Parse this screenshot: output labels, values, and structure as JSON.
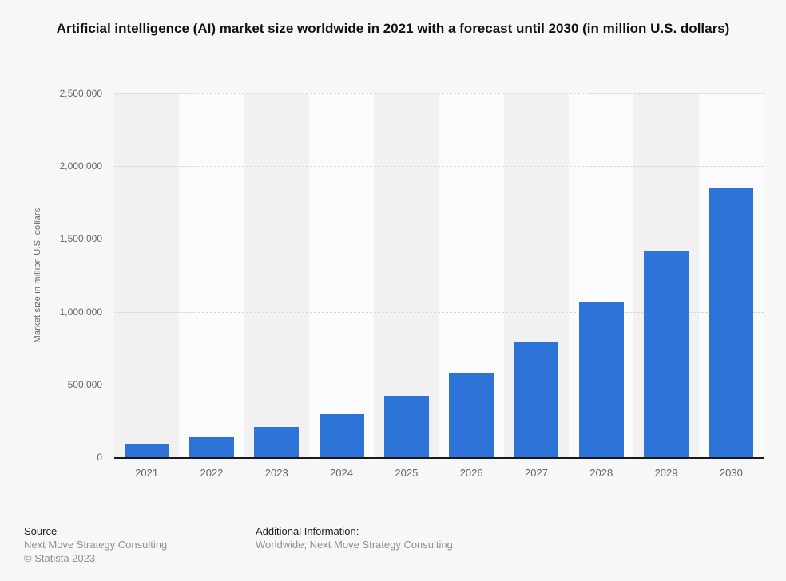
{
  "chart_data": {
    "type": "bar",
    "title": "Artificial intelligence (AI) market size worldwide in 2021 with a forecast until 2030 (in million U.S. dollars)",
    "categories": [
      "2021",
      "2022",
      "2023",
      "2024",
      "2025",
      "2026",
      "2027",
      "2028",
      "2029",
      "2030"
    ],
    "values": [
      93530,
      142320,
      207900,
      298250,
      420470,
      582950,
      795390,
      1068890,
      1415870,
      1847500
    ],
    "xlabel": "",
    "ylabel": "Market size in million U.S. dollars",
    "ylim": [
      0,
      2500000
    ],
    "ytick_interval": 500000,
    "ytick_labels": [
      "0",
      "500,000",
      "1,000,000",
      "1,500,000",
      "2,000,000",
      "2,500,000"
    ],
    "grid": "horizontal-dashed",
    "legend": "none",
    "bar_color": "#2e73d8"
  },
  "footer": {
    "source_label": "Source",
    "source_name": "Next Move Strategy Consulting",
    "copyright": "© Statista 2023",
    "additional_info_label": "Additional Information:",
    "additional_info_value": "Worldwide; Next Move Strategy  Consulting"
  },
  "colors": {
    "bar": "#2e73d8",
    "background": "#f7f7f7",
    "band_dark": "#f1f1f2",
    "band_light": "#fbfbfb",
    "gridline": "#d8d8d8",
    "axis_line": "#1a1a1a",
    "tick_text": "#666666",
    "title_text": "#111111",
    "footer_text": "#222222",
    "footer_muted": "#8f8f8f"
  }
}
